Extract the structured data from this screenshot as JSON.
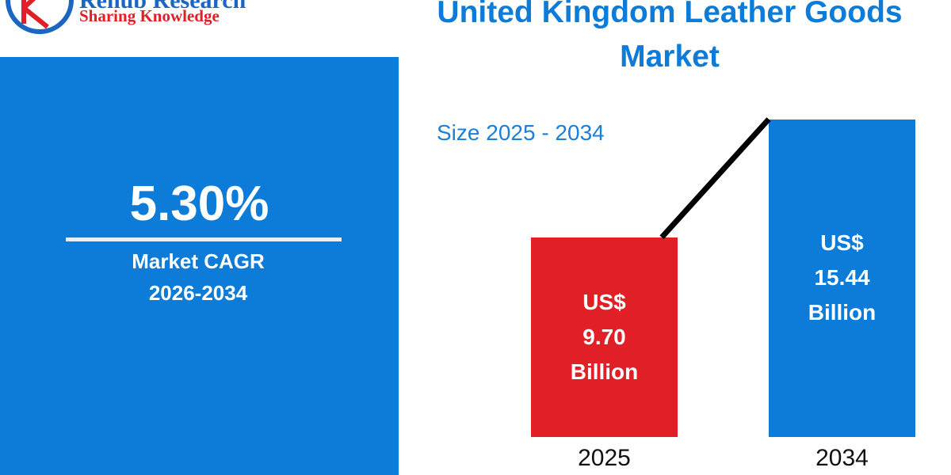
{
  "logo": {
    "name": "Renub Research",
    "tagline": "Sharing Knowledge"
  },
  "cagr": {
    "value_text": "5.30%",
    "caption": "Market CAGR 2026-2034"
  },
  "chart_data": {
    "type": "bar",
    "title": "United Kingdom Leather Goods Market",
    "subtitle": "Size 2025 - 2034",
    "categories": [
      "2025",
      "2034"
    ],
    "values": [
      9.7,
      15.44
    ],
    "value_labels": [
      "US$ 9.70 Billion",
      "US$ 15.44 Billion"
    ],
    "colors": [
      "#e11f26",
      "#0d7bd8"
    ]
  }
}
